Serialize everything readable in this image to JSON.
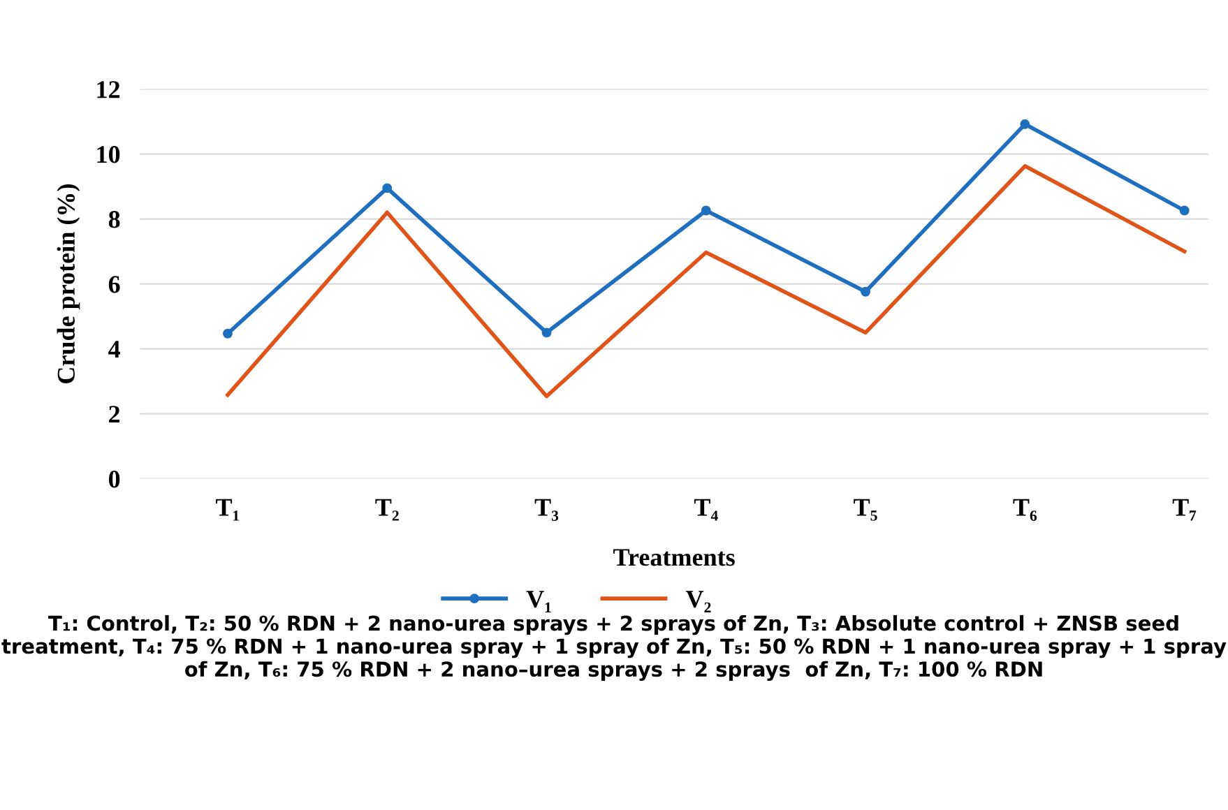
{
  "chart_data": {
    "type": "line",
    "xlabel": "Treatments",
    "ylabel": "Crude protein (%)",
    "categories": [
      "T₁",
      "T₂",
      "T₃",
      "T₄",
      "T₅",
      "T₆",
      "T₇"
    ],
    "series": [
      {
        "name": "V₁",
        "color": "#1f6fbf",
        "marker": "circle",
        "values": [
          4.47,
          8.95,
          4.5,
          8.26,
          5.76,
          10.92,
          8.26
        ]
      },
      {
        "name": "V₂",
        "color": "#e0541a",
        "marker": "none",
        "values": [
          2.58,
          8.2,
          2.54,
          6.97,
          4.5,
          9.63,
          7.0
        ]
      }
    ],
    "ylim": [
      0,
      12
    ],
    "yticks": [
      0,
      2,
      4,
      6,
      8,
      10,
      12
    ],
    "grid": "y",
    "legend": "bottom",
    "line_style": "solid",
    "annotations": [
      "T₁: Control, T₂: 50 % RDN + 2 nano-urea sprays + 2 sprays of Zn, T₃: Absolute control + ZNSB seed treatment, T₄: 75 % RDN + 1 nano-urea spray + 1 spray of Zn, T₅: 50 % RDN + 1 nano-urea spray + 1 spray of Zn, T₆: 75 % RDN + 2 nano–urea sprays + 2 sprays  of Zn, T₇: 100 % RDN"
    ]
  }
}
